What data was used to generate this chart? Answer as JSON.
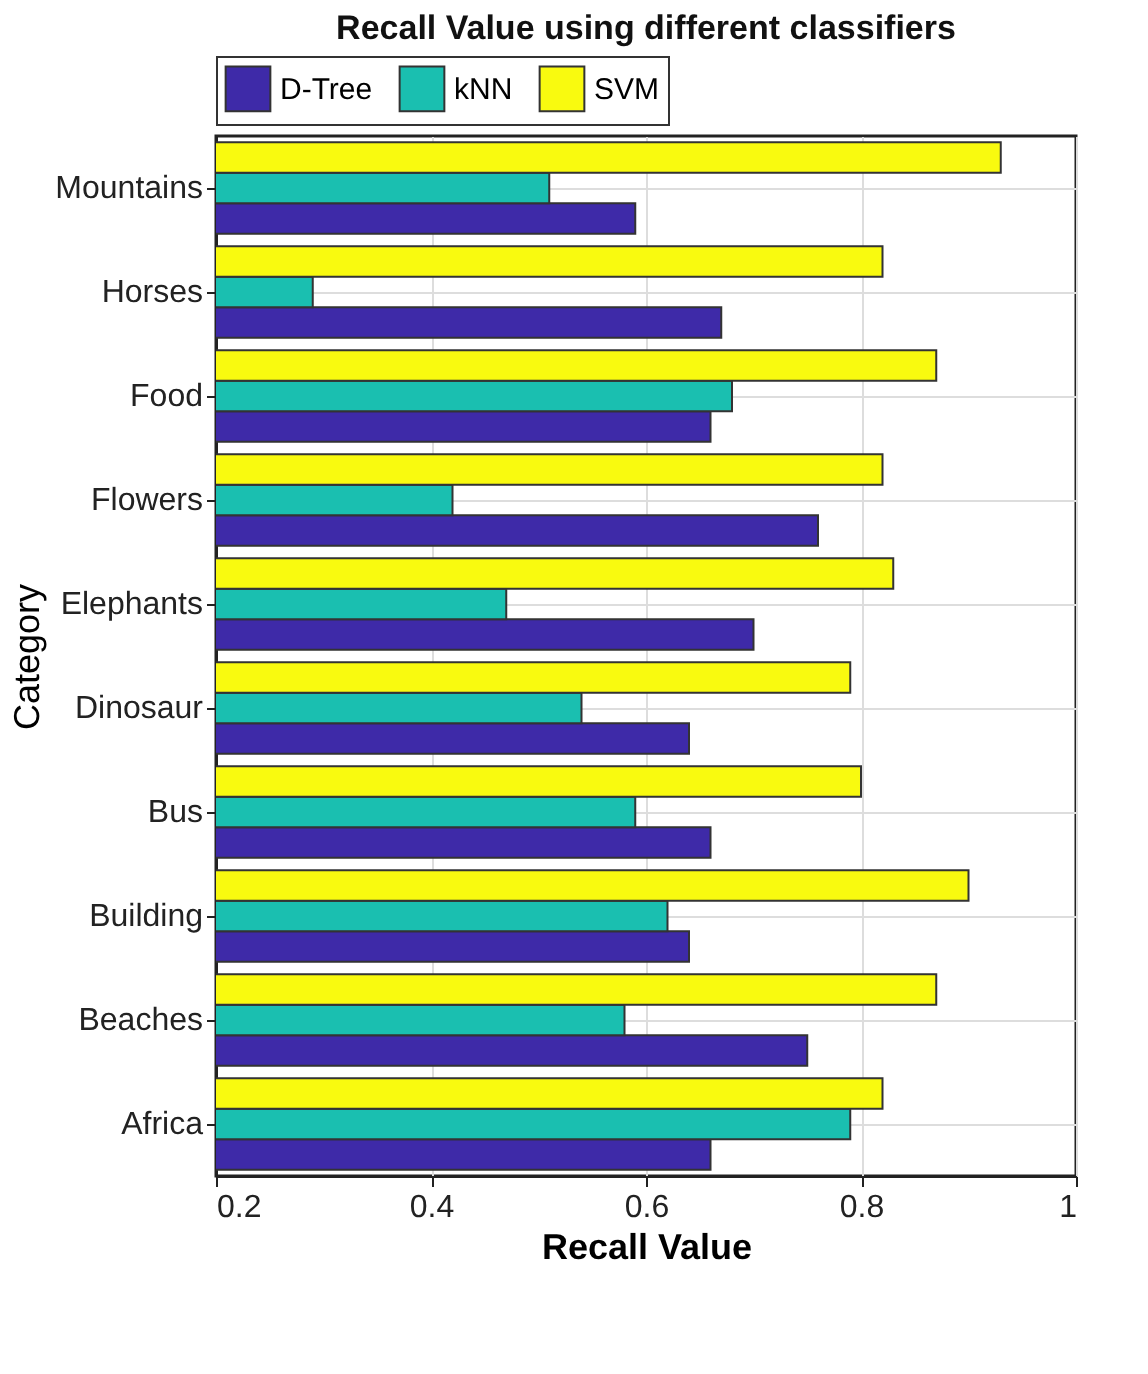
{
  "chart_data": {
    "type": "bar",
    "orientation": "horizontal",
    "title": "Recall Value using different classifiers",
    "xlabel": "Recall Value",
    "ylabel": "Category",
    "categories": [
      "Mountains",
      "Horses",
      "Food",
      "Flowers",
      "Elephants",
      "Dinosaur",
      "Bus",
      "Building",
      "Beaches",
      "Africa"
    ],
    "series": [
      {
        "name": "D-Tree",
        "color": "#3e2aa8",
        "values": [
          0.59,
          0.67,
          0.66,
          0.76,
          0.7,
          0.64,
          0.66,
          0.64,
          0.75,
          0.66
        ]
      },
      {
        "name": "kNN",
        "color": "#1abfb0",
        "values": [
          0.51,
          0.29,
          0.68,
          0.42,
          0.47,
          0.54,
          0.59,
          0.62,
          0.58,
          0.79
        ]
      },
      {
        "name": "SVM",
        "color": "#f9fa0f",
        "values": [
          0.93,
          0.82,
          0.87,
          0.82,
          0.83,
          0.79,
          0.8,
          0.9,
          0.87,
          0.82
        ]
      }
    ],
    "xlim": [
      0.2,
      1
    ],
    "xticks": [
      0.2,
      0.4,
      0.6,
      0.8,
      1
    ],
    "grid": true,
    "legend": "top"
  }
}
